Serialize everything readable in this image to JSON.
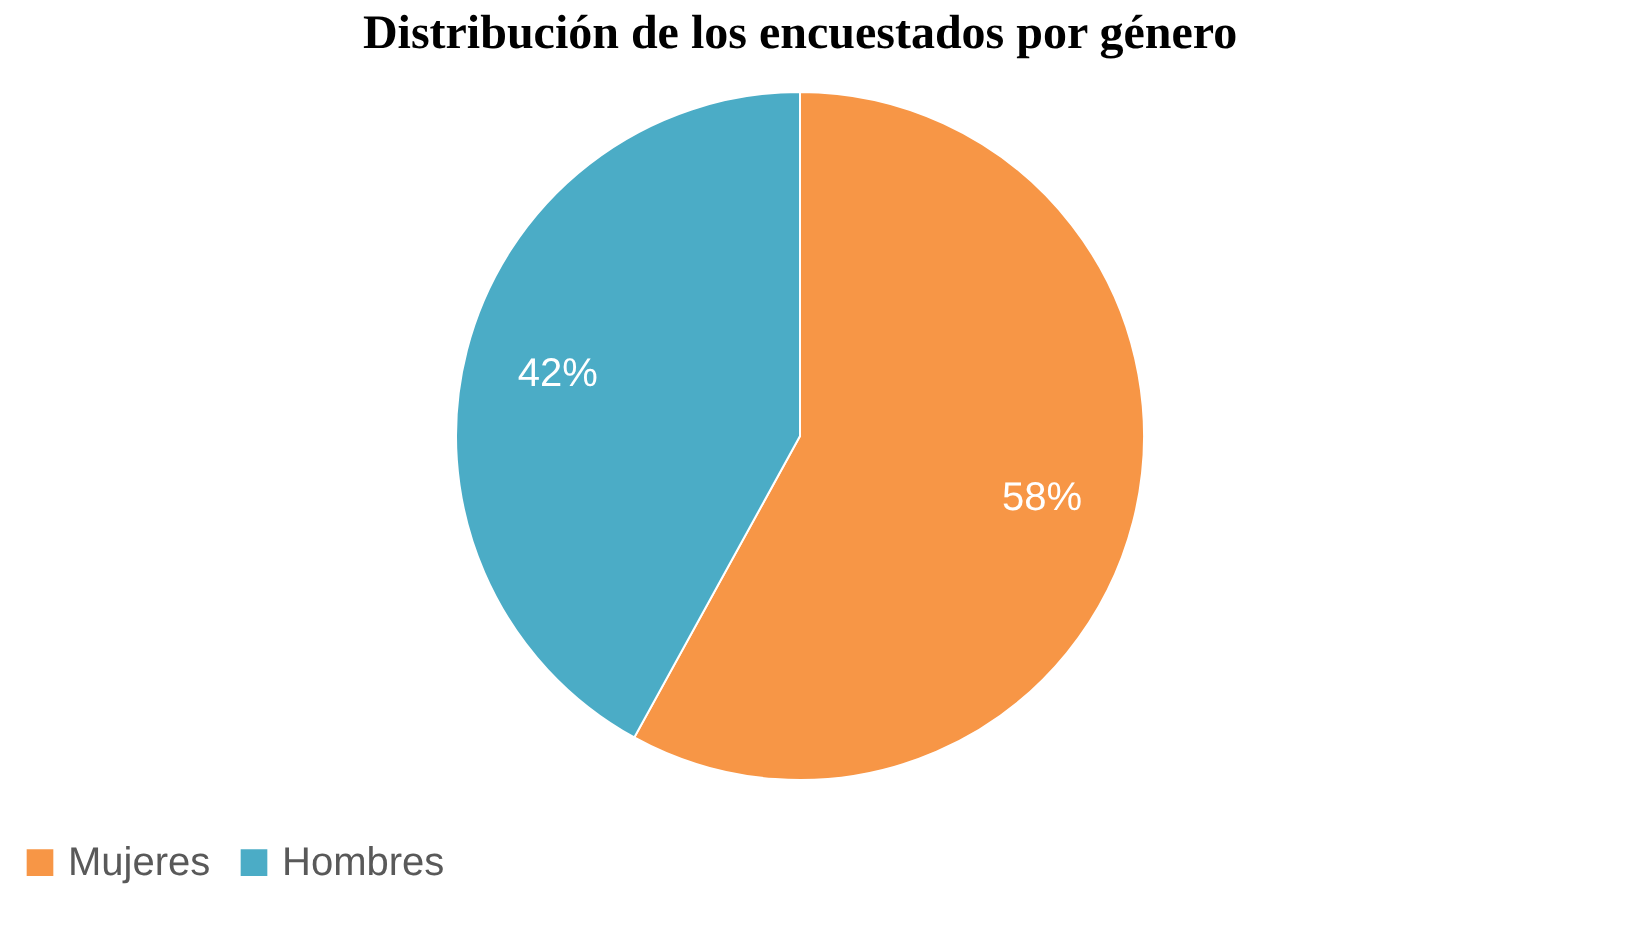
{
  "chart_data": {
    "type": "pie",
    "title": "Distribución de los encuestados por género",
    "categories": [
      "Mujeres",
      "Hombres"
    ],
    "values": [
      58,
      42
    ],
    "colors": [
      "#f79646",
      "#4bacc6"
    ],
    "value_labels": [
      "58%",
      "42%"
    ],
    "legend": "bottom"
  }
}
